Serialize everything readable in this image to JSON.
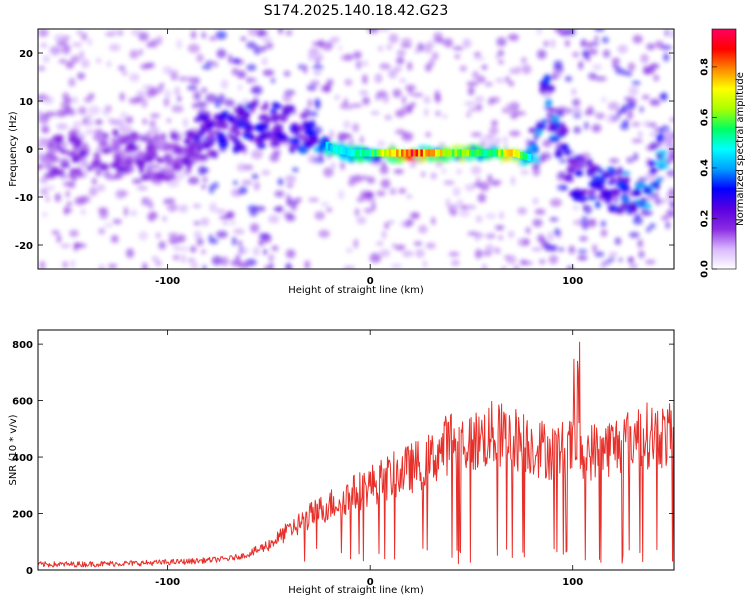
{
  "title": "S174.2025.140.18.42.G23",
  "chart_data": [
    {
      "type": "heatmap",
      "xlabel": "Height of straight line (km)",
      "ylabel": "Frequency (Hz)",
      "xlim": [
        -164,
        150
      ],
      "ylim": [
        -25,
        25
      ],
      "xticks": [
        -100,
        0,
        100
      ],
      "xtick_labels": [
        "-100",
        "0",
        "100"
      ],
      "yticks": [
        -20,
        -10,
        0,
        10,
        20
      ],
      "ytick_labels": [
        "-20",
        "-10",
        "0",
        "10",
        "20"
      ],
      "colorbar": {
        "label": "Normalized spectral amplitude",
        "range": [
          0,
          0.95
        ],
        "ticks": [
          0.0,
          0.2,
          0.4,
          0.6,
          0.8
        ],
        "tick_labels": [
          "0.0",
          "0.2",
          "0.4",
          "0.6",
          "0.8"
        ],
        "colors": [
          "#ffffff",
          "#d9b8ff",
          "#8a2be2",
          "#5a00e0",
          "#0000ff",
          "#00a0ff",
          "#00ffff",
          "#00ff60",
          "#aaff00",
          "#ffff00",
          "#ff8800",
          "#ff0000",
          "#ff0060"
        ]
      },
      "ridge": [
        {
          "x": -160,
          "f": -2,
          "a": 0.18
        },
        {
          "x": -140,
          "f": -1,
          "a": 0.2
        },
        {
          "x": -120,
          "f": -1,
          "a": 0.22
        },
        {
          "x": -100,
          "f": -2,
          "a": 0.18
        },
        {
          "x": -80,
          "f": 3,
          "a": 0.3
        },
        {
          "x": -60,
          "f": 5,
          "a": 0.35
        },
        {
          "x": -45,
          "f": 5,
          "a": 0.3
        },
        {
          "x": -30,
          "f": 3,
          "a": 0.35
        },
        {
          "x": -20,
          "f": 0,
          "a": 0.5
        },
        {
          "x": -10,
          "f": -1,
          "a": 0.55
        },
        {
          "x": 0,
          "f": -1,
          "a": 0.6
        },
        {
          "x": 10,
          "f": -1,
          "a": 0.8
        },
        {
          "x": 20,
          "f": -1,
          "a": 0.95
        },
        {
          "x": 40,
          "f": -1,
          "a": 0.7
        },
        {
          "x": 60,
          "f": -1,
          "a": 0.6
        },
        {
          "x": 70,
          "f": -1,
          "a": 0.85
        },
        {
          "x": 78,
          "f": -2,
          "a": 0.5
        },
        {
          "x": 87,
          "f": 11,
          "a": 0.45
        },
        {
          "x": 100,
          "f": -6,
          "a": 0.3
        },
        {
          "x": 133,
          "f": -10,
          "a": 0.4
        },
        {
          "x": 146,
          "f": 0,
          "a": 0.45
        }
      ]
    },
    {
      "type": "line",
      "xlabel": "Height of straight line (km)",
      "ylabel": "SNR (10 * v/v)",
      "xlim": [
        -164,
        150
      ],
      "ylim": [
        0,
        850
      ],
      "xticks": [
        -100,
        0,
        100
      ],
      "xtick_labels": [
        "-100",
        "0",
        "100"
      ],
      "yticks": [
        0,
        200,
        400,
        600,
        800
      ],
      "ytick_labels": [
        "0",
        "200",
        "400",
        "600",
        "800"
      ],
      "color": "#e8302a",
      "series": [
        {
          "x": [
            -164,
            -150,
            -130,
            -110,
            -90,
            -70,
            -60,
            -50,
            -40,
            -30,
            -20,
            -10,
            0,
            10,
            20,
            30,
            40,
            50,
            60,
            70,
            80,
            90,
            100,
            110,
            120,
            130,
            140,
            150
          ],
          "values": [
            20,
            20,
            22,
            25,
            30,
            40,
            55,
            90,
            140,
            190,
            230,
            265,
            300,
            330,
            360,
            390,
            460,
            450,
            480,
            470,
            440,
            420,
            430,
            420,
            440,
            470,
            480,
            470
          ]
        }
      ]
    }
  ]
}
